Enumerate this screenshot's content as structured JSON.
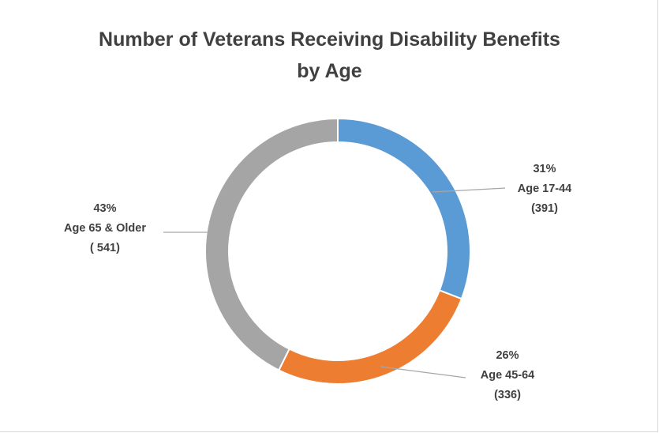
{
  "chart_data": {
    "type": "pie",
    "variant": "doughnut",
    "title_lines": [
      "Number of Veterans Receiving Disability Benefits",
      "by Age"
    ],
    "slices": [
      {
        "label": "Age 17-44",
        "value": 391,
        "percent_text": "31%",
        "value_text": "(391)",
        "color": "#5b9bd5"
      },
      {
        "label": "Age 45-64",
        "value": 336,
        "percent_text": "26%",
        "value_text": "(336)",
        "color": "#ed7d31"
      },
      {
        "label": "Age 65 & Older",
        "value": 541,
        "percent_text": "43%",
        "value_text": "( 541)",
        "color": "#a5a5a5"
      }
    ],
    "start_angle_deg": 0,
    "direction": "clockwise",
    "legend": "none"
  }
}
